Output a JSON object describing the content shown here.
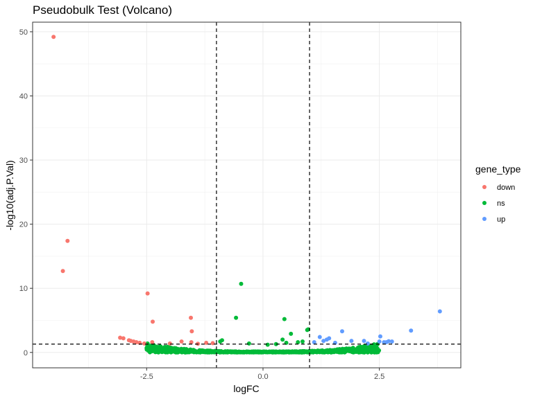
{
  "chart_data": {
    "type": "scatter",
    "title": "Pseudobulk Test (Volcano)",
    "xlabel": "logFC",
    "ylabel": "-log10(adj.P.Val)",
    "xlim": [
      -4.95,
      4.25
    ],
    "ylim": [
      -2.4,
      51.5
    ],
    "x_ticks": [
      -2.5,
      0,
      2.5
    ],
    "x_tick_labels": [
      "-2.5",
      "0.0",
      "2.5"
    ],
    "y_ticks": [
      0,
      10,
      20,
      30,
      40,
      50
    ],
    "y_tick_labels": [
      "0",
      "10",
      "20",
      "30",
      "40",
      "50"
    ],
    "grid": true,
    "reference_lines": {
      "vertical": [
        -1,
        1
      ],
      "horizontal": [
        1.3
      ],
      "style": "dashed"
    },
    "legend": {
      "title": "gene_type",
      "position": "right",
      "entries": [
        {
          "name": "down",
          "color": "#F8766D"
        },
        {
          "name": "ns",
          "color": "#00BA38"
        },
        {
          "name": "up",
          "color": "#619CFF"
        }
      ]
    },
    "series": [
      {
        "name": "down",
        "color": "#F8766D",
        "points": [
          [
            -4.5,
            49.2
          ],
          [
            -4.2,
            17.4
          ],
          [
            -4.3,
            12.7
          ],
          [
            -2.48,
            9.2
          ],
          [
            -2.37,
            4.8
          ],
          [
            -1.55,
            5.4
          ],
          [
            -1.53,
            3.3
          ],
          [
            -3.07,
            2.3
          ],
          [
            -3.0,
            2.2
          ],
          [
            -2.88,
            1.9
          ],
          [
            -2.84,
            1.8
          ],
          [
            -2.78,
            1.7
          ],
          [
            -2.72,
            1.6
          ],
          [
            -2.65,
            1.5
          ],
          [
            -2.55,
            1.4
          ],
          [
            -2.38,
            1.6
          ],
          [
            -1.75,
            1.7
          ],
          [
            -1.54,
            1.6
          ],
          [
            -1.22,
            1.5
          ],
          [
            -1.08,
            1.45
          ],
          [
            -2.0,
            1.4
          ],
          [
            -1.4,
            1.35
          ]
        ]
      },
      {
        "name": "ns",
        "color": "#00BA38",
        "points": [
          [
            -0.47,
            10.7
          ],
          [
            -0.58,
            5.4
          ],
          [
            0.46,
            5.2
          ],
          [
            0.6,
            2.9
          ],
          [
            0.97,
            3.6
          ],
          [
            0.95,
            3.5
          ],
          [
            0.42,
            2.0
          ],
          [
            -0.88,
            1.9
          ],
          [
            -0.92,
            1.7
          ],
          [
            0.28,
            1.3
          ],
          [
            0.1,
            1.2
          ],
          [
            0.85,
            1.7
          ],
          [
            0.75,
            1.6
          ],
          [
            -0.3,
            1.4
          ],
          [
            0.5,
            1.5
          ]
        ]
      },
      {
        "name": "up",
        "color": "#619CFF",
        "points": [
          [
            3.8,
            6.4
          ],
          [
            3.18,
            3.4
          ],
          [
            1.7,
            3.3
          ],
          [
            2.52,
            2.5
          ],
          [
            1.22,
            2.4
          ],
          [
            1.42,
            2.2
          ],
          [
            1.37,
            2.0
          ],
          [
            1.3,
            1.8
          ],
          [
            1.9,
            1.8
          ],
          [
            2.17,
            1.8
          ],
          [
            2.5,
            1.7
          ],
          [
            2.6,
            1.6
          ],
          [
            2.7,
            1.75
          ],
          [
            2.77,
            1.7
          ],
          [
            2.65,
            1.6
          ],
          [
            1.1,
            1.6
          ],
          [
            2.25,
            1.4
          ],
          [
            1.55,
            1.5
          ]
        ]
      }
    ],
    "ns_cloud": {
      "color": "#00BA38",
      "x_range": [
        -2.5,
        2.5
      ],
      "y_min": 0,
      "y_at_edges": 1.3
    }
  }
}
